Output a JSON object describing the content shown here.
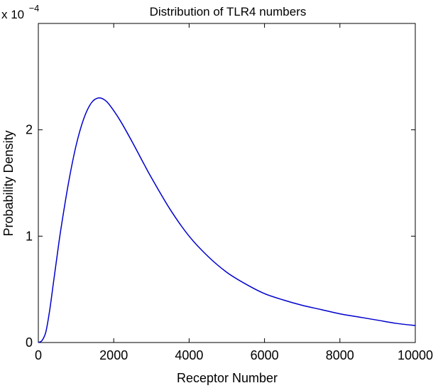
{
  "chart_data": {
    "type": "line",
    "title": "Distribution of TLR4 numbers",
    "xlabel": "Receptor Number",
    "ylabel": "Probability Density",
    "y_multiplier": {
      "base": "x 10",
      "exponent": "−4"
    },
    "xlim": [
      0,
      10000
    ],
    "ylim": [
      0,
      3
    ],
    "x_ticks": [
      {
        "value": 0,
        "label": "0"
      },
      {
        "value": 2000,
        "label": "2000"
      },
      {
        "value": 4000,
        "label": "4000"
      },
      {
        "value": 6000,
        "label": "6000"
      },
      {
        "value": 8000,
        "label": "8000"
      },
      {
        "value": 10000,
        "label": "10000"
      }
    ],
    "y_ticks": [
      {
        "value": 0,
        "label": "0"
      },
      {
        "value": 1,
        "label": "1"
      },
      {
        "value": 2,
        "label": "2"
      }
    ],
    "grid": false,
    "series": [
      {
        "color": "#0000cc",
        "x": [
          0,
          100,
          200,
          300,
          400,
          500,
          600,
          800,
          1000,
          1200,
          1400,
          1600,
          1800,
          2000,
          2200,
          2500,
          2800,
          3000,
          3500,
          4000,
          4500,
          5000,
          5500,
          6000,
          6500,
          7000,
          7500,
          8000,
          8500,
          9000,
          9500,
          10000
        ],
        "y": [
          0,
          0.02,
          0.1,
          0.3,
          0.56,
          0.82,
          1.07,
          1.5,
          1.85,
          2.1,
          2.25,
          2.3,
          2.27,
          2.18,
          2.07,
          1.88,
          1.68,
          1.55,
          1.25,
          1.0,
          0.81,
          0.66,
          0.55,
          0.46,
          0.4,
          0.35,
          0.31,
          0.27,
          0.24,
          0.21,
          0.18,
          0.16
        ]
      }
    ]
  }
}
